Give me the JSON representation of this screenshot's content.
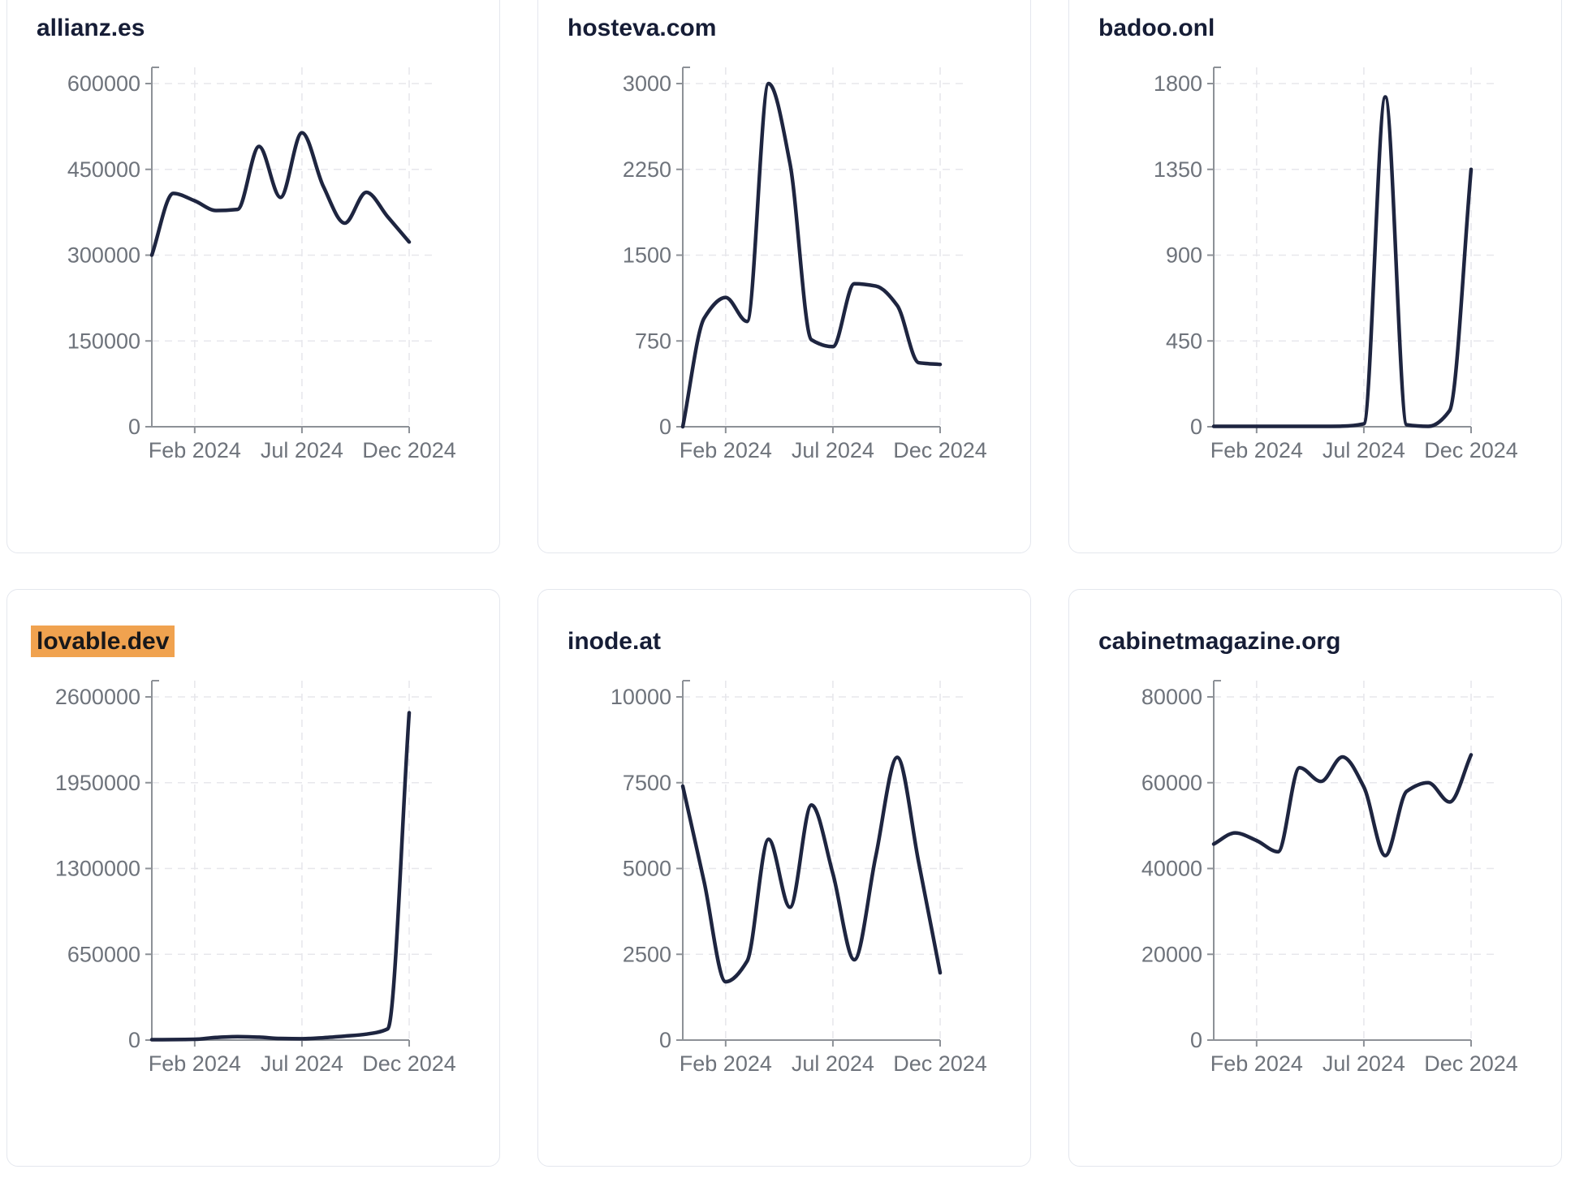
{
  "colors": {
    "line": "#1e2540",
    "title": "#161d36",
    "tick_label": "#6e737b",
    "grid": "#e7e7ec",
    "axis": "#8d9197",
    "card_border": "#e4e7ee",
    "highlight_bg": "#f0a24f",
    "highlight_text": "#18181b",
    "background": "#ffffff"
  },
  "months": [
    "Dec 2023",
    "Jan 2024",
    "Feb 2024",
    "Mar 2024",
    "Apr 2024",
    "May 2024",
    "Jun 2024",
    "Jul 2024",
    "Aug 2024",
    "Sep 2024",
    "Oct 2024",
    "Nov 2024",
    "Dec 2024"
  ],
  "x_axis": {
    "tick_labels": [
      "Feb 2024",
      "Jul 2024",
      "Dec 2024"
    ],
    "tick_month_indices": [
      2,
      7,
      12
    ]
  },
  "chart_data": [
    {
      "type": "line",
      "title": "allianz.es",
      "highlighted": false,
      "ylim": [
        0,
        600000
      ],
      "y_ticks": [
        0,
        150000,
        300000,
        450000,
        600000
      ],
      "x": [
        "Dec 2023",
        "Jan 2024",
        "Feb 2024",
        "Mar 2024",
        "Apr 2024",
        "May 2024",
        "Jun 2024",
        "Jul 2024",
        "Aug 2024",
        "Sep 2024",
        "Oct 2024",
        "Nov 2024",
        "Dec 2024"
      ],
      "values": [
        300000,
        408000,
        395000,
        378000,
        380000,
        490000,
        401000,
        514000,
        420000,
        356000,
        410000,
        367000,
        323000
      ]
    },
    {
      "type": "line",
      "title": "hosteva.com",
      "highlighted": false,
      "ylim": [
        0,
        3000
      ],
      "y_ticks": [
        0,
        750,
        1500,
        2250,
        3000
      ],
      "x": [
        "Dec 2023",
        "Jan 2024",
        "Feb 2024",
        "Mar 2024",
        "Apr 2024",
        "May 2024",
        "Jun 2024",
        "Jul 2024",
        "Aug 2024",
        "Sep 2024",
        "Oct 2024",
        "Nov 2024",
        "Dec 2024"
      ],
      "values": [
        0,
        950,
        1130,
        920,
        3000,
        2300,
        760,
        700,
        1250,
        1230,
        1060,
        560,
        545
      ]
    },
    {
      "type": "line",
      "title": "badoo.onl",
      "highlighted": false,
      "ylim": [
        0,
        1800
      ],
      "y_ticks": [
        0,
        450,
        900,
        1350,
        1800
      ],
      "x": [
        "Dec 2023",
        "Jan 2024",
        "Feb 2024",
        "Mar 2024",
        "Apr 2024",
        "May 2024",
        "Jun 2024",
        "Jul 2024",
        "Aug 2024",
        "Sep 2024",
        "Oct 2024",
        "Nov 2024",
        "Dec 2024"
      ],
      "values": [
        2,
        2,
        2,
        2,
        2,
        2,
        3,
        15,
        1730,
        10,
        2,
        85,
        1350
      ]
    },
    {
      "type": "line",
      "title": "lovable.dev",
      "highlighted": true,
      "ylim": [
        0,
        2600000
      ],
      "y_ticks": [
        0,
        650000,
        1300000,
        1950000,
        2600000
      ],
      "x": [
        "Dec 2023",
        "Jan 2024",
        "Feb 2024",
        "Mar 2024",
        "Apr 2024",
        "May 2024",
        "Jun 2024",
        "Jul 2024",
        "Aug 2024",
        "Sep 2024",
        "Oct 2024",
        "Nov 2024",
        "Dec 2024"
      ],
      "values": [
        3000,
        4000,
        6000,
        20000,
        26000,
        22000,
        12000,
        10000,
        18000,
        30000,
        45000,
        85000,
        2480000
      ]
    },
    {
      "type": "line",
      "title": "inode.at",
      "highlighted": false,
      "ylim": [
        0,
        10000
      ],
      "y_ticks": [
        0,
        2500,
        5000,
        7500,
        10000
      ],
      "x": [
        "Dec 2023",
        "Jan 2024",
        "Feb 2024",
        "Mar 2024",
        "Apr 2024",
        "May 2024",
        "Jun 2024",
        "Jul 2024",
        "Aug 2024",
        "Sep 2024",
        "Oct 2024",
        "Nov 2024",
        "Dec 2024"
      ],
      "values": [
        7400,
        4600,
        1700,
        2300,
        5850,
        3870,
        6850,
        4850,
        2340,
        5360,
        8240,
        5180,
        1960
      ]
    },
    {
      "type": "line",
      "title": "cabinetmagazine.org",
      "highlighted": false,
      "ylim": [
        0,
        80000
      ],
      "y_ticks": [
        0,
        20000,
        40000,
        60000,
        80000
      ],
      "x": [
        "Dec 2023",
        "Jan 2024",
        "Feb 2024",
        "Mar 2024",
        "Apr 2024",
        "May 2024",
        "Jun 2024",
        "Jul 2024",
        "Aug 2024",
        "Sep 2024",
        "Oct 2024",
        "Nov 2024",
        "Dec 2024"
      ],
      "values": [
        45700,
        48300,
        46500,
        43900,
        63500,
        60300,
        66000,
        59000,
        43000,
        58000,
        60000,
        55500,
        66500
      ]
    }
  ]
}
